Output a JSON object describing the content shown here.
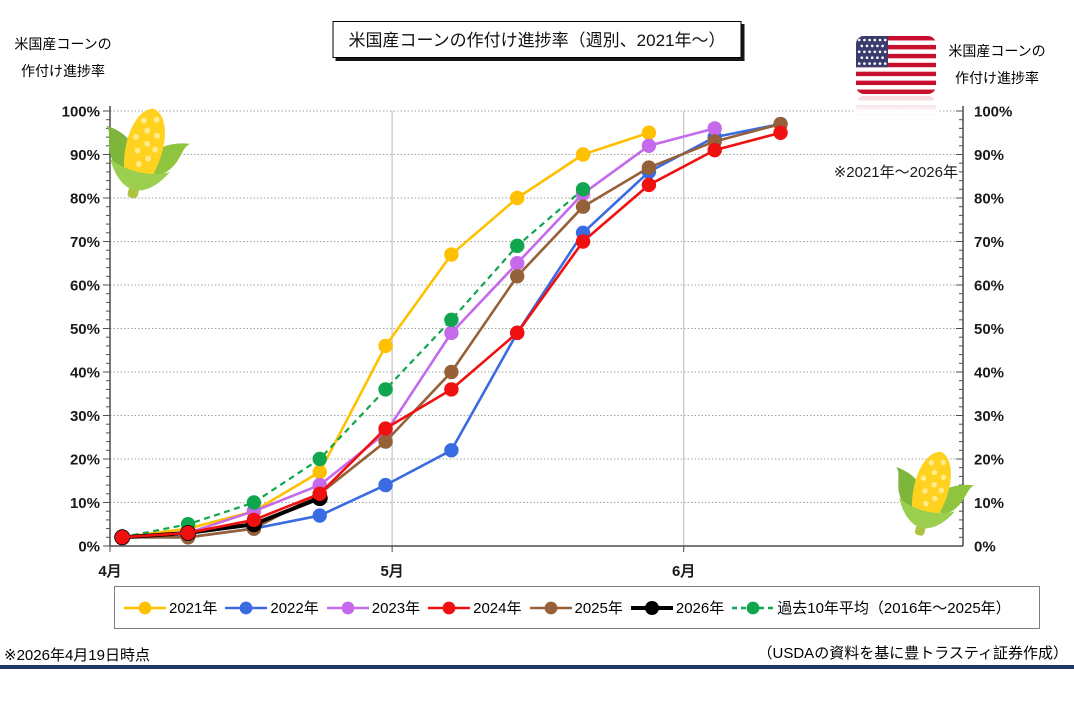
{
  "titles": {
    "chart_title": "米国産コーンの作付け進捗率（週別、2021年～）",
    "left_axis_title": [
      "米国産コーンの",
      "作付け進捗率"
    ],
    "right_axis_title": [
      "米国産コーンの",
      "作付け進捗率"
    ],
    "annotation": "※2021年～2026年"
  },
  "footer": {
    "as_of": "※2026年4月19日時点",
    "source": "（USDAの資料を基に豊トラスティ証券作成）"
  },
  "icons": {
    "flag": "us-flag-icon",
    "corn_top_left": "corn-icon",
    "corn_bottom_right": "corn-icon"
  },
  "colors": {
    "footer_rule": "#1F3864",
    "grid": "#A3A3A3",
    "month_line": "#C8C8C8",
    "axis": "#4D4D4D",
    "legend_border": "#7F7F7F",
    "flag_red": "#C8102E",
    "flag_blue": "#3C3B6E"
  },
  "chart_data": {
    "type": "line",
    "title": "米国産コーンの作付け進捗率（週別、2021年～）",
    "ylabel": "作付け進捗率",
    "grid": true,
    "legend_position": "bottom",
    "x_axis": {
      "labels": [
        "4月",
        "5月",
        "6月"
      ],
      "label_days": [
        0,
        30,
        61
      ],
      "domain_days": [
        0,
        90.7
      ]
    },
    "y_axis": {
      "min": 0,
      "max": 100,
      "major_step": 10,
      "minor_step": 2,
      "suffix": "%"
    },
    "x_week_days": [
      1.3,
      8.3,
      15.3,
      22.3,
      29.3,
      36.3,
      43.3,
      50.3,
      57.3,
      64.3,
      71.3
    ],
    "series": [
      {
        "name": "2021年",
        "color": "#FFC000",
        "style": "solid",
        "width": 2.6,
        "values": [
          2,
          4,
          8,
          17,
          46,
          67,
          80,
          90,
          95
        ]
      },
      {
        "name": "2022年",
        "color": "#3A6BE2",
        "style": "solid",
        "width": 2.6,
        "values": [
          2,
          2,
          4,
          7,
          14,
          22,
          49,
          72,
          86,
          94,
          97
        ]
      },
      {
        "name": "2023年",
        "color": "#C46AEA",
        "style": "solid",
        "width": 2.6,
        "values": [
          2,
          3,
          8,
          14,
          26,
          49,
          65,
          81,
          92,
          96
        ]
      },
      {
        "name": "2024年",
        "color": "#F01010",
        "style": "solid",
        "width": 2.6,
        "values": [
          2,
          3,
          6,
          12,
          27,
          36,
          49,
          70,
          83,
          91,
          95
        ]
      },
      {
        "name": "2025年",
        "color": "#966038",
        "style": "solid",
        "width": 2.6,
        "values": [
          2,
          2,
          4,
          12,
          24,
          40,
          62,
          78,
          87,
          93,
          97
        ]
      },
      {
        "name": "2026年",
        "color": "#000000",
        "style": "solid",
        "width": 4.0,
        "values": [
          2,
          3,
          5,
          11
        ]
      },
      {
        "name": "過去10年平均（2016年～2025年）",
        "color": "#10A64F",
        "style": "dashed",
        "width": 2.2,
        "values": [
          2,
          5,
          10,
          20,
          36,
          52,
          69,
          82
        ]
      }
    ]
  }
}
